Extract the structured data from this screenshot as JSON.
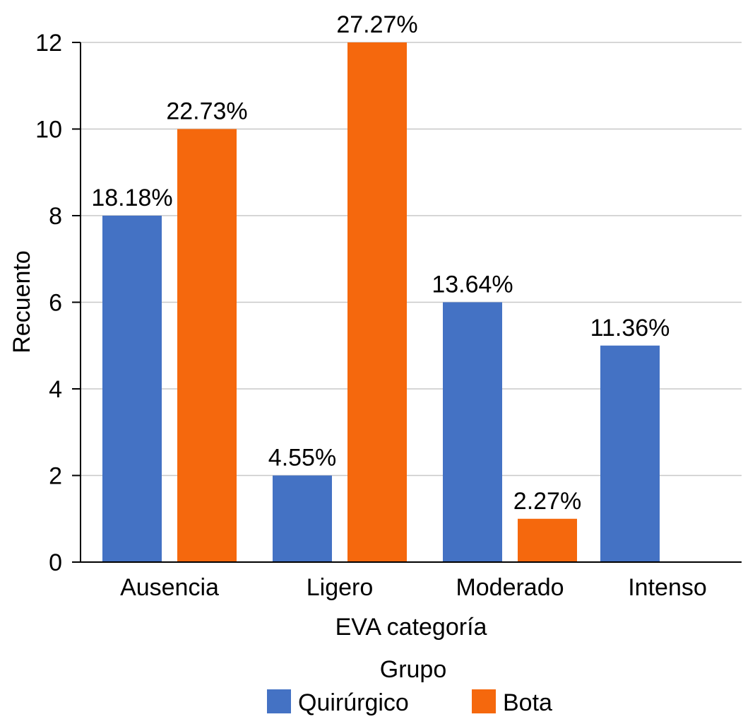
{
  "chart_data": {
    "type": "bar",
    "xlabel": "EVA categoría",
    "ylabel": "Recuento",
    "ylim": [
      0,
      12
    ],
    "yticks": [
      0,
      2,
      4,
      6,
      8,
      10,
      12
    ],
    "categories": [
      "Ausencia",
      "Ligero",
      "Moderado",
      "Intenso"
    ],
    "series": [
      {
        "name": "Quirúrgico",
        "color": "#4472c4",
        "values": [
          8,
          2,
          6,
          5
        ],
        "labels": [
          "18.18%",
          "4.55%",
          "13.64%",
          "11.36%"
        ]
      },
      {
        "name": "Bota",
        "color": "#f5680d",
        "values": [
          10,
          12,
          1,
          null
        ],
        "labels": [
          "22.73%",
          "27.27%",
          "2.27%",
          null
        ]
      }
    ],
    "legend": {
      "title": "Grupo",
      "position": "bottom"
    },
    "grid": true
  }
}
